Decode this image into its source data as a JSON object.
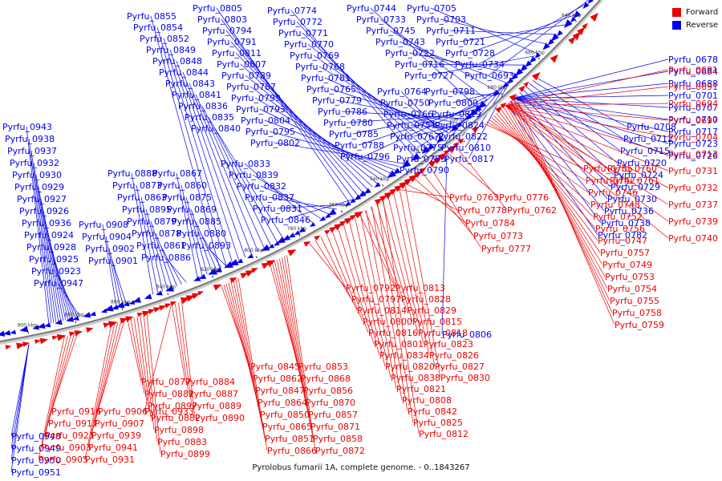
{
  "title": "Pyrolobus fumarii 1A, complete genome. - 0..1843267",
  "legend": [
    {
      "label": "Forward",
      "color": "#ee0000"
    },
    {
      "label": "Reverse",
      "color": "#0000ee"
    }
  ],
  "colors": {
    "forward": "#ee0000",
    "reverse": "#0000ee",
    "backbone": "#777777"
  },
  "scale": [
    {
      "label": "640 kbp",
      "pos": 640000
    },
    {
      "label": "660 kbp",
      "pos": 660000
    },
    {
      "label": "680 kbp",
      "pos": 680000
    },
    {
      "label": "700 kbp",
      "pos": 700000
    },
    {
      "label": "720 kbp",
      "pos": 720000
    },
    {
      "label": "740 kbp",
      "pos": 740000
    },
    {
      "label": "760 kbp",
      "pos": 760000
    },
    {
      "label": "780 kbp",
      "pos": 780000
    },
    {
      "label": "800 kbp",
      "pos": 800000
    },
    {
      "label": "820 kbp",
      "pos": 820000
    },
    {
      "label": "840 kbp",
      "pos": 840000
    },
    {
      "label": "860 kbp",
      "pos": 860000
    },
    {
      "label": "880 kbp",
      "pos": 880000
    },
    {
      "label": "900 kbp",
      "pos": 900000
    }
  ],
  "reverse_labels": [
    "Pyrfu_0855",
    "Pyrfu_0854",
    "Pyrfu_0852",
    "Pyrfu_0849",
    "Pyrfu_0848",
    "Pyrfu_0844",
    "Pyrfu_0843",
    "Pyrfu_0841",
    "Pyrfu_0836",
    "Pyrfu_0835",
    "Pyrfu_0840",
    "Pyrfu_0805",
    "Pyrfu_0803",
    "Pyrfu_0794",
    "Pyrfu_0791",
    "Pyrfu_0811",
    "Pyrfu_0807",
    "Pyrfu_0789",
    "Pyrfu_0787",
    "Pyrfu_0799",
    "Pyrfu_0793",
    "Pyrfu_0804",
    "Pyrfu_0795",
    "Pyrfu_0802",
    "Pyrfu_0774",
    "Pyrfu_0772",
    "Pyrfu_0771",
    "Pyrfu_0770",
    "Pyrfu_0769",
    "Pyrfu_0768",
    "Pyrfu_0781",
    "Pyrfu_0765",
    "Pyrfu_0779",
    "Pyrfu_0786",
    "Pyrfu_0780",
    "Pyrfu_0785",
    "Pyrfu_0788",
    "Pyrfu_0796",
    "Pyrfu_0744",
    "Pyrfu_0733",
    "Pyrfu_0745",
    "Pyrfu_0743",
    "Pyrfu_0722",
    "Pyrfu_0716",
    "Pyrfu_0727",
    "Pyrfu_0705",
    "Pyrfu_0703",
    "Pyrfu_0711",
    "Pyrfu_0721",
    "Pyrfu_0728",
    "Pyrfu_0734",
    "Pyrfu_0693",
    "Pyrfu_0764",
    "Pyrfu_0750",
    "Pyrfu_0766",
    "Pyrfu_0751",
    "Pyrfu_0767",
    "Pyrfu_0775",
    "Pyrfu_0783",
    "Pyrfu_0790",
    "Pyrfu_0798",
    "Pyrfu_0809",
    "Pyrfu_0819",
    "Pyrfu_0824",
    "Pyrfu_0822",
    "Pyrfu_0810",
    "Pyrfu_0817",
    "Pyrfu_0833",
    "Pyrfu_0839",
    "Pyrfu_0832",
    "Pyrfu_0837",
    "Pyrfu_0831",
    "Pyrfu_0846",
    "Pyrfu_0888",
    "Pyrfu_0873",
    "Pyrfu_0863",
    "Pyrfu_0895",
    "Pyrfu_0879",
    "Pyrfu_0878",
    "Pyrfu_0861",
    "Pyrfu_0886",
    "Pyrfu_0867",
    "Pyrfu_0860",
    "Pyrfu_0875",
    "Pyrfu_0869",
    "Pyrfu_0885",
    "Pyrfu_0880",
    "Pyrfu_0893",
    "Pyrfu_0908",
    "Pyrfu_0904",
    "Pyrfu_0902",
    "Pyrfu_0901",
    "Pyrfu_0943",
    "Pyrfu_0938",
    "Pyrfu_0937",
    "Pyrfu_0932",
    "Pyrfu_0930",
    "Pyrfu_0929",
    "Pyrfu_0927",
    "Pyrfu_0926",
    "Pyrfu_0936",
    "Pyrfu_0924",
    "Pyrfu_0928",
    "Pyrfu_0925",
    "Pyrfu_0923",
    "Pyrfu_0947",
    "Pyrfu_0708",
    "Pyrfu_0712",
    "Pyrfu_0715",
    "Pyrfu_0720",
    "Pyrfu_0724",
    "Pyrfu_0729",
    "Pyrfu_0730",
    "Pyrfu_0736",
    "Pyrfu_0738",
    "Pyrfu_0782",
    "Pyrfu_0678",
    "Pyrfu_0684",
    "Pyrfu_0688",
    "Pyrfu_0701",
    "Pyrfu_0707",
    "Pyrfu_0710",
    "Pyrfu_0717",
    "Pyrfu_0723",
    "Pyrfu_0726",
    "Pyrfu_0806",
    "Pyrfu_0948",
    "Pyrfu_0949",
    "Pyrfu_0950",
    "Pyrfu_0951"
  ],
  "forward_labels": [
    "Pyrfu_0681",
    "Pyrfu_0691",
    "Pyrfu_0694",
    "Pyrfu_0697",
    "Pyrfu_0704",
    "Pyrfu_0713",
    "Pyrfu_0731",
    "Pyrfu_0732",
    "Pyrfu_0737",
    "Pyrfu_0739",
    "Pyrfu_0740",
    "Pyrfu_0735",
    "Pyrfu_0742",
    "Pyrfu_0746",
    "Pyrfu_0748",
    "Pyrfu_0752",
    "Pyrfu_0756",
    "Pyrfu_0747",
    "Pyrfu_0757",
    "Pyrfu_0749",
    "Pyrfu_0753",
    "Pyrfu_0754",
    "Pyrfu_0755",
    "Pyrfu_0758",
    "Pyrfu_0759",
    "Pyrfu_0760",
    "Pyrfu_0761",
    "Pyrfu_0763",
    "Pyrfu_0778",
    "Pyrfu_0784",
    "Pyrfu_0773",
    "Pyrfu_0777",
    "Pyrfu_0776",
    "Pyrfu_0762",
    "Pyrfu_0792",
    "Pyrfu_0797",
    "Pyrfu_0814",
    "Pyrfu_0800",
    "Pyrfu_0816",
    "Pyrfu_0801",
    "Pyrfu_0834",
    "Pyrfu_0820",
    "Pyrfu_0838",
    "Pyrfu_0821",
    "Pyrfu_0808",
    "Pyrfu_0842",
    "Pyrfu_0825",
    "Pyrfu_0812",
    "Pyrfu_0813",
    "Pyrfu_0828",
    "Pyrfu_0829",
    "Pyrfu_0815",
    "Pyrfu_0818",
    "Pyrfu_0823",
    "Pyrfu_0826",
    "Pyrfu_0827",
    "Pyrfu_0830",
    "Pyrfu_0845",
    "Pyrfu_0862",
    "Pyrfu_0847",
    "Pyrfu_0864",
    "Pyrfu_0850",
    "Pyrfu_0865",
    "Pyrfu_0851",
    "Pyrfu_0866",
    "Pyrfu_0853",
    "Pyrfu_0868",
    "Pyrfu_0856",
    "Pyrfu_0870",
    "Pyrfu_0857",
    "Pyrfu_0871",
    "Pyrfu_0858",
    "Pyrfu_0872",
    "Pyrfu_0877",
    "Pyrfu_0881",
    "Pyrfu_0897",
    "Pyrfu_0882",
    "Pyrfu_0898",
    "Pyrfu_0883",
    "Pyrfu_0899",
    "Pyrfu_0884",
    "Pyrfu_0887",
    "Pyrfu_0889",
    "Pyrfu_0890",
    "Pyrfu_0916",
    "Pyrfu_0917",
    "Pyrfu_0921",
    "Pyrfu_0903",
    "Pyrfu_0905",
    "Pyrfu_0906",
    "Pyrfu_0907",
    "Pyrfu_0939",
    "Pyrfu_0941",
    "Pyrfu_0931",
    "Pyrfu_0933",
    "Pyrfu_0934"
  ]
}
